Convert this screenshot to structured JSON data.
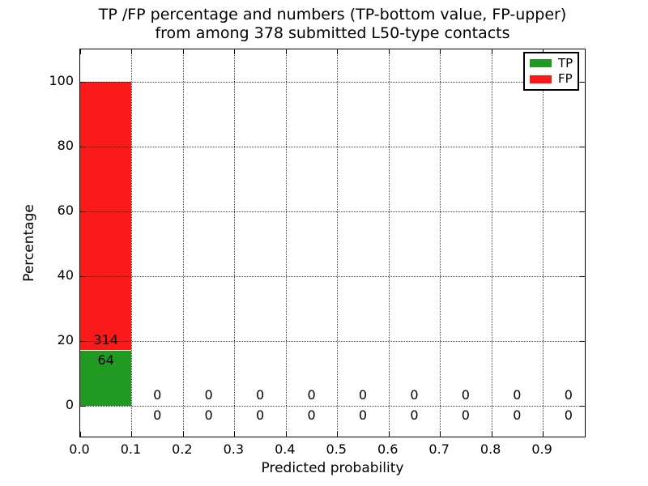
{
  "chart_data": {
    "type": "bar",
    "stacked": true,
    "title_line1": "TP /FP percentage and numbers (TP-bottom value, FP-upper)",
    "title_line2": "from among 378 submitted L50-type contacts",
    "xlabel": "Predicted probability",
    "ylabel": "Percentage",
    "total_submitted": 378,
    "xlim": [
      0.0,
      0.985
    ],
    "ylim": [
      -10,
      110
    ],
    "xticks": [
      "0.0",
      "0.1",
      "0.2",
      "0.3",
      "0.4",
      "0.5",
      "0.6",
      "0.7",
      "0.8",
      "0.9"
    ],
    "yticks": [
      0,
      20,
      40,
      60,
      80,
      100
    ],
    "grid": true,
    "grid_style": "dotted",
    "legend_position": "upper right",
    "bin_width": 0.1,
    "bin_starts": [
      0.0,
      0.1,
      0.2,
      0.3,
      0.4,
      0.5,
      0.6,
      0.7,
      0.8,
      0.9
    ],
    "series": [
      {
        "name": "TP",
        "color": "#219a21",
        "counts": [
          64,
          0,
          0,
          0,
          0,
          0,
          0,
          0,
          0,
          0
        ],
        "percent": [
          16.93,
          0,
          0,
          0,
          0,
          0,
          0,
          0,
          0,
          0
        ]
      },
      {
        "name": "FP",
        "color": "#fa1a1a",
        "counts": [
          314,
          0,
          0,
          0,
          0,
          0,
          0,
          0,
          0,
          0
        ],
        "percent": [
          83.07,
          0,
          0,
          0,
          0,
          0,
          0,
          0,
          0,
          0
        ]
      }
    ]
  }
}
